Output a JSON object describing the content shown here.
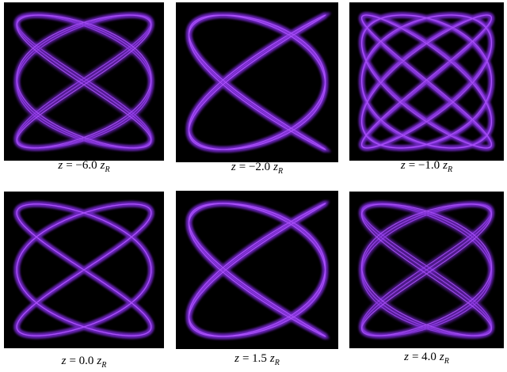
{
  "panels": [
    {
      "caption": {
        "variable": "z",
        "value": "= −6.0",
        "unit": "z",
        "subscript": "R"
      }
    },
    {
      "caption": {
        "variable": "z",
        "value": "= −2.0",
        "unit": "z",
        "subscript": "R"
      }
    },
    {
      "caption": {
        "variable": "z",
        "value": "= −1.0",
        "unit": "z",
        "subscript": "R"
      }
    },
    {
      "caption": {
        "variable": "z",
        "value": "= 0.0",
        "unit": "z",
        "subscript": "R"
      }
    },
    {
      "caption": {
        "variable": "z",
        "value": "= 1.5",
        "unit": "z",
        "subscript": "R"
      }
    },
    {
      "caption": {
        "variable": "z",
        "value": "= 4.0",
        "unit": "z",
        "subscript": "R"
      }
    }
  ]
}
